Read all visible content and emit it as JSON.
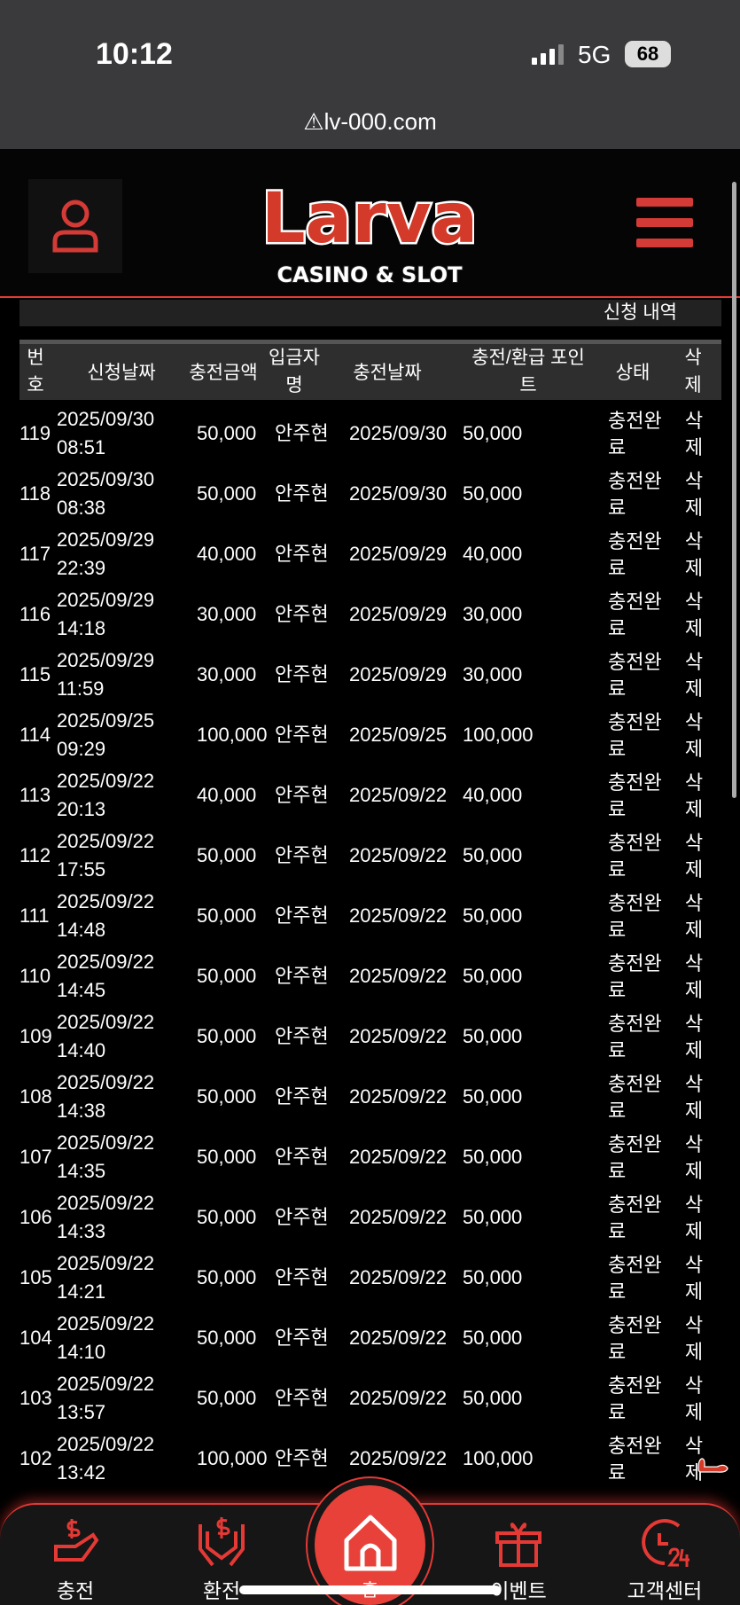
{
  "status_bar": {
    "time": "10:12",
    "network": "5G",
    "battery": "68"
  },
  "browser": {
    "url": "lv-000.com"
  },
  "header": {
    "logo_text": "Larva",
    "logo_subtitle": "CASINO & SLOT"
  },
  "section": {
    "title": "신청 내역"
  },
  "table": {
    "columns": [
      "번\n호",
      "신청날짜",
      "충전금액",
      "입금자\n명",
      "충전날짜",
      "충전/환급 포인\n트",
      "상태",
      "삭\n제"
    ],
    "rows": [
      [
        "119",
        "2025/09/30",
        "08:51",
        "50,000",
        "안주현",
        "2025/09/30",
        "50,000",
        "충전완료",
        "삭제"
      ],
      [
        "118",
        "2025/09/30",
        "08:38",
        "50,000",
        "안주현",
        "2025/09/30",
        "50,000",
        "충전완료",
        "삭제"
      ],
      [
        "117",
        "2025/09/29",
        "22:39",
        "40,000",
        "안주현",
        "2025/09/29",
        "40,000",
        "충전완료",
        "삭제"
      ],
      [
        "116",
        "2025/09/29",
        "14:18",
        "30,000",
        "안주현",
        "2025/09/29",
        "30,000",
        "충전완료",
        "삭제"
      ],
      [
        "115",
        "2025/09/29",
        "11:59",
        "30,000",
        "안주현",
        "2025/09/29",
        "30,000",
        "충전완료",
        "삭제"
      ],
      [
        "114",
        "2025/09/25",
        "09:29",
        "100,000",
        "안주현",
        "2025/09/25",
        "100,000",
        "충전완료",
        "삭제"
      ],
      [
        "113",
        "2025/09/22",
        "20:13",
        "40,000",
        "안주현",
        "2025/09/22",
        "40,000",
        "충전완료",
        "삭제"
      ],
      [
        "112",
        "2025/09/22",
        "17:55",
        "50,000",
        "안주현",
        "2025/09/22",
        "50,000",
        "충전완료",
        "삭제"
      ],
      [
        "111",
        "2025/09/22",
        "14:48",
        "50,000",
        "안주현",
        "2025/09/22",
        "50,000",
        "충전완료",
        "삭제"
      ],
      [
        "110",
        "2025/09/22",
        "14:45",
        "50,000",
        "안주현",
        "2025/09/22",
        "50,000",
        "충전완료",
        "삭제"
      ],
      [
        "109",
        "2025/09/22",
        "14:40",
        "50,000",
        "안주현",
        "2025/09/22",
        "50,000",
        "충전완료",
        "삭제"
      ],
      [
        "108",
        "2025/09/22",
        "14:38",
        "50,000",
        "안주현",
        "2025/09/22",
        "50,000",
        "충전완료",
        "삭제"
      ],
      [
        "107",
        "2025/09/22",
        "14:35",
        "50,000",
        "안주현",
        "2025/09/22",
        "50,000",
        "충전완료",
        "삭제"
      ],
      [
        "106",
        "2025/09/22",
        "14:33",
        "50,000",
        "안주현",
        "2025/09/22",
        "50,000",
        "충전완료",
        "삭제"
      ],
      [
        "105",
        "2025/09/22",
        "14:21",
        "50,000",
        "안주현",
        "2025/09/22",
        "50,000",
        "충전완료",
        "삭제"
      ],
      [
        "104",
        "2025/09/22",
        "14:10",
        "50,000",
        "안주현",
        "2025/09/22",
        "50,000",
        "충전완료",
        "삭제"
      ],
      [
        "103",
        "2025/09/22",
        "13:57",
        "50,000",
        "안주현",
        "2025/09/22",
        "50,000",
        "충전완료",
        "삭제"
      ],
      [
        "102",
        "2025/09/22",
        "13:42",
        "100,000",
        "안주현",
        "2025/09/22",
        "100,000",
        "충전완료",
        "삭제"
      ]
    ]
  },
  "bottom_nav": {
    "items": [
      {
        "label": "충전",
        "icon": "hand-dollar-icon"
      },
      {
        "label": "환전",
        "icon": "hands-dollar-icon"
      },
      {
        "label": "홈",
        "icon": "home-icon"
      },
      {
        "label": "이벤트",
        "icon": "gift-icon"
      },
      {
        "label": "고객센터",
        "icon": "clock-24-icon"
      }
    ]
  },
  "colors": {
    "accent": "#e53935",
    "header_bg": "#2e2e2e"
  }
}
